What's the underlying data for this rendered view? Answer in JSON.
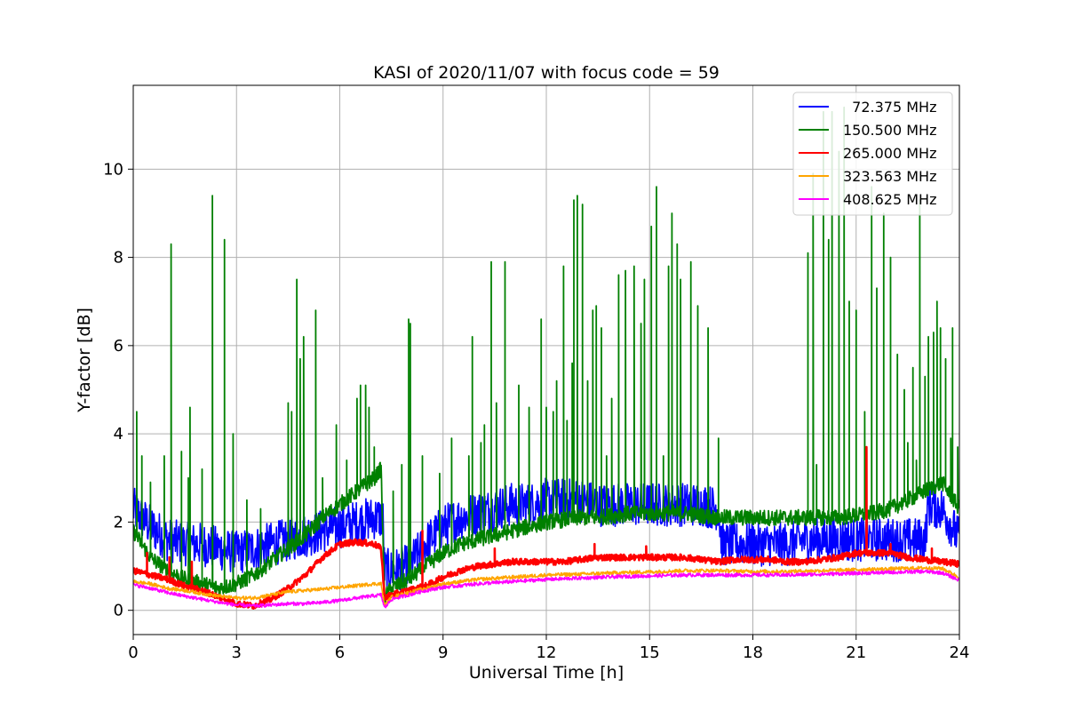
{
  "chart_data": {
    "type": "line",
    "title": "KASI of 2020/11/07 with focus code = 59",
    "xlabel": "Universal Time [h]",
    "ylabel": "Y-factor [dB]",
    "xlim": [
      0,
      24
    ],
    "ylim": [
      -0.55,
      11.9
    ],
    "xticks": [
      0,
      3,
      6,
      9,
      12,
      15,
      18,
      21,
      24
    ],
    "yticks": [
      0,
      2,
      4,
      6,
      8,
      10
    ],
    "grid": true,
    "legend_position": "top-right",
    "series": [
      {
        "name": "  72.375 MHz",
        "color": "#0000ff",
        "x": [
          0,
          0.5,
          1,
          1.5,
          2,
          2.5,
          3,
          3.5,
          4,
          4.5,
          5,
          5.5,
          6,
          6.5,
          7,
          7.25,
          7.3,
          7.5,
          8,
          8.5,
          9,
          9.5,
          10,
          10.5,
          11,
          11.5,
          12,
          12.5,
          13,
          13.5,
          14,
          14.5,
          15,
          15.5,
          16,
          16.5,
          17,
          17.1,
          17.5,
          18,
          18.5,
          19,
          19.5,
          20,
          20.5,
          21,
          21.5,
          22,
          22.5,
          23,
          23.1,
          23.5,
          24
        ],
        "y": [
          2.3,
          1.9,
          1.6,
          1.5,
          1.5,
          1.4,
          1.3,
          1.4,
          1.5,
          1.6,
          1.7,
          1.8,
          1.9,
          2.0,
          2.1,
          2.1,
          0.9,
          0.9,
          1.0,
          1.5,
          1.9,
          2.1,
          2.2,
          2.3,
          2.4,
          2.4,
          2.5,
          2.5,
          2.5,
          2.4,
          2.4,
          2.4,
          2.4,
          2.4,
          2.4,
          2.4,
          2.3,
          1.5,
          1.5,
          1.5,
          1.5,
          1.5,
          1.6,
          1.6,
          1.6,
          1.6,
          1.6,
          1.6,
          1.6,
          1.6,
          2.4,
          2.3,
          1.6
        ],
        "noise": 0.5
      },
      {
        "name": "150.500 MHz",
        "color": "#008000",
        "x": [
          0,
          0.5,
          1,
          1.5,
          2,
          2.5,
          3,
          3.5,
          4,
          4.5,
          5,
          5.5,
          6,
          6.5,
          7,
          7.2,
          7.3,
          7.5,
          8,
          8.5,
          9,
          9.5,
          10,
          10.5,
          11,
          11.5,
          12,
          12.5,
          13,
          13.5,
          14,
          14.5,
          15,
          15.5,
          16,
          16.5,
          17,
          17.5,
          18,
          18.5,
          19,
          19.5,
          20,
          20.5,
          21,
          21.5,
          22,
          22.5,
          23,
          23.5,
          24
        ],
        "y": [
          1.8,
          1.2,
          0.9,
          0.7,
          0.6,
          0.5,
          0.6,
          0.8,
          1.1,
          1.4,
          1.7,
          2.1,
          2.4,
          2.7,
          3.0,
          3.2,
          0.3,
          0.5,
          0.7,
          1.0,
          1.3,
          1.5,
          1.6,
          1.7,
          1.8,
          1.9,
          2.0,
          2.05,
          2.1,
          2.1,
          2.15,
          2.2,
          2.2,
          2.2,
          2.2,
          2.15,
          2.1,
          2.1,
          2.1,
          2.1,
          2.1,
          2.1,
          2.1,
          2.1,
          2.15,
          2.2,
          2.3,
          2.5,
          2.7,
          2.9,
          2.3
        ],
        "noise": 0.18,
        "spikes": [
          [
            0.1,
            4.5
          ],
          [
            0.25,
            3.5
          ],
          [
            0.5,
            2.9
          ],
          [
            0.9,
            3.5
          ],
          [
            1.1,
            8.3
          ],
          [
            1.4,
            3.6
          ],
          [
            1.6,
            3.0
          ],
          [
            1.65,
            4.6
          ],
          [
            2.0,
            3.2
          ],
          [
            2.3,
            9.4
          ],
          [
            2.65,
            8.4
          ],
          [
            2.9,
            4.0
          ],
          [
            3.3,
            2.5
          ],
          [
            3.7,
            2.3
          ],
          [
            4.5,
            4.7
          ],
          [
            4.6,
            4.5
          ],
          [
            4.75,
            7.5
          ],
          [
            4.85,
            5.7
          ],
          [
            4.95,
            6.2
          ],
          [
            5.3,
            6.8
          ],
          [
            5.5,
            3.0
          ],
          [
            5.9,
            4.2
          ],
          [
            6.2,
            3.4
          ],
          [
            6.5,
            4.8
          ],
          [
            6.6,
            5.1
          ],
          [
            6.75,
            5.1
          ],
          [
            6.85,
            4.6
          ],
          [
            7.0,
            3.7
          ],
          [
            7.55,
            2.7
          ],
          [
            7.8,
            3.3
          ],
          [
            8.0,
            6.6
          ],
          [
            8.05,
            6.5
          ],
          [
            8.4,
            3.5
          ],
          [
            8.9,
            3.1
          ],
          [
            9.25,
            3.9
          ],
          [
            9.75,
            3.5
          ],
          [
            9.85,
            6.2
          ],
          [
            10.1,
            3.8
          ],
          [
            10.2,
            4.2
          ],
          [
            10.4,
            7.9
          ],
          [
            10.55,
            4.7
          ],
          [
            10.8,
            7.9
          ],
          [
            11.2,
            5.1
          ],
          [
            11.5,
            4.6
          ],
          [
            11.85,
            6.6
          ],
          [
            12.0,
            4.6
          ],
          [
            12.2,
            4.5
          ],
          [
            12.3,
            5.2
          ],
          [
            12.5,
            7.8
          ],
          [
            12.6,
            4.3
          ],
          [
            12.75,
            5.6
          ],
          [
            12.8,
            9.3
          ],
          [
            12.9,
            9.4
          ],
          [
            13.05,
            9.2
          ],
          [
            13.2,
            5.2
          ],
          [
            13.35,
            6.8
          ],
          [
            13.45,
            6.9
          ],
          [
            13.6,
            6.4
          ],
          [
            13.75,
            3.5
          ],
          [
            13.9,
            4.8
          ],
          [
            14.1,
            7.6
          ],
          [
            14.3,
            7.7
          ],
          [
            14.55,
            7.8
          ],
          [
            14.75,
            6.5
          ],
          [
            14.85,
            7.5
          ],
          [
            15.05,
            8.7
          ],
          [
            15.2,
            9.6
          ],
          [
            15.4,
            3.5
          ],
          [
            15.55,
            7.8
          ],
          [
            15.65,
            9.0
          ],
          [
            15.8,
            8.3
          ],
          [
            15.9,
            7.5
          ],
          [
            16.2,
            7.9
          ],
          [
            16.4,
            6.9
          ],
          [
            16.7,
            6.4
          ],
          [
            17.0,
            3.9
          ],
          [
            19.6,
            8.1
          ],
          [
            19.75,
            9.9
          ],
          [
            19.85,
            3.3
          ],
          [
            20.05,
            11.3
          ],
          [
            20.2,
            8.4
          ],
          [
            20.3,
            11.3
          ],
          [
            20.5,
            10.4
          ],
          [
            20.65,
            11.4
          ],
          [
            20.8,
            7.0
          ],
          [
            21.0,
            6.8
          ],
          [
            21.25,
            4.5
          ],
          [
            21.45,
            9.6
          ],
          [
            21.6,
            7.3
          ],
          [
            21.8,
            9.0
          ],
          [
            22.0,
            8.0
          ],
          [
            22.2,
            5.8
          ],
          [
            22.4,
            5.0
          ],
          [
            22.5,
            3.8
          ],
          [
            22.65,
            5.5
          ],
          [
            22.75,
            3.4
          ],
          [
            22.85,
            9.3
          ],
          [
            23.0,
            5.3
          ],
          [
            23.1,
            6.2
          ],
          [
            23.25,
            6.3
          ],
          [
            23.35,
            7.0
          ],
          [
            23.45,
            6.4
          ],
          [
            23.6,
            5.7
          ],
          [
            23.75,
            3.9
          ],
          [
            23.8,
            6.4
          ],
          [
            23.95,
            3.7
          ]
        ]
      },
      {
        "name": "265.000 MHz",
        "color": "#ff0000",
        "x": [
          0,
          0.5,
          1,
          1.5,
          2,
          2.5,
          3,
          3.5,
          4,
          4.5,
          5,
          5.5,
          6,
          6.5,
          7,
          7.2,
          7.3,
          7.5,
          8,
          8.5,
          9,
          9.5,
          10,
          10.5,
          11,
          11.5,
          12,
          12.5,
          13,
          13.5,
          14,
          14.5,
          15,
          15.5,
          16,
          16.5,
          17,
          17.5,
          18,
          18.5,
          19,
          19.5,
          20,
          20.5,
          21,
          21.5,
          22,
          22.5,
          23,
          23.5,
          24
        ],
        "y": [
          0.9,
          0.8,
          0.7,
          0.55,
          0.45,
          0.3,
          0.15,
          0.1,
          0.25,
          0.5,
          0.8,
          1.2,
          1.5,
          1.55,
          1.5,
          1.4,
          0.3,
          0.35,
          0.45,
          0.55,
          0.75,
          0.9,
          1.0,
          1.05,
          1.1,
          1.1,
          1.1,
          1.1,
          1.15,
          1.2,
          1.2,
          1.2,
          1.2,
          1.2,
          1.2,
          1.15,
          1.1,
          1.15,
          1.15,
          1.15,
          1.1,
          1.1,
          1.15,
          1.2,
          1.3,
          1.3,
          1.3,
          1.2,
          1.15,
          1.1,
          1.05
        ],
        "noise": 0.07,
        "spikes": [
          [
            0.4,
            1.3
          ],
          [
            1.05,
            1.2
          ],
          [
            1.7,
            1.1
          ],
          [
            8.4,
            1.8
          ],
          [
            10.5,
            1.4
          ],
          [
            13.4,
            1.5
          ],
          [
            14.9,
            1.45
          ],
          [
            21.3,
            3.7
          ],
          [
            22.0,
            1.5
          ],
          [
            23.2,
            1.4
          ]
        ]
      },
      {
        "name": "323.563 MHz",
        "color": "#ffa500",
        "x": [
          0,
          0.5,
          1,
          1.5,
          2,
          2.5,
          3,
          3.5,
          4,
          4.5,
          5,
          5.5,
          6,
          6.5,
          7,
          7.2,
          7.3,
          7.5,
          8,
          8.5,
          9,
          9.5,
          10,
          11,
          12,
          13,
          14,
          15,
          16,
          17,
          18,
          19,
          20,
          21,
          22,
          23,
          23.5,
          24
        ],
        "y": [
          0.65,
          0.6,
          0.5,
          0.45,
          0.38,
          0.32,
          0.28,
          0.28,
          0.35,
          0.42,
          0.45,
          0.48,
          0.52,
          0.56,
          0.6,
          0.6,
          0.1,
          0.3,
          0.4,
          0.5,
          0.6,
          0.65,
          0.7,
          0.75,
          0.8,
          0.82,
          0.85,
          0.87,
          0.9,
          0.9,
          0.88,
          0.88,
          0.9,
          0.92,
          0.94,
          0.96,
          0.95,
          0.75
        ],
        "noise": 0.04
      },
      {
        "name": "408.625 MHz",
        "color": "#ff00ff",
        "x": [
          0,
          0.5,
          1,
          1.5,
          2,
          2.5,
          3,
          3.5,
          4,
          4.5,
          5,
          5.5,
          6,
          6.5,
          7,
          7.2,
          7.3,
          7.5,
          8,
          8.5,
          9,
          9.5,
          10,
          11,
          12,
          13,
          14,
          15,
          16,
          17,
          18,
          19,
          20,
          21,
          22,
          23,
          23.5,
          24
        ],
        "y": [
          0.58,
          0.5,
          0.4,
          0.32,
          0.25,
          0.18,
          0.12,
          0.1,
          0.12,
          0.15,
          0.15,
          0.18,
          0.22,
          0.28,
          0.33,
          0.35,
          0.05,
          0.25,
          0.35,
          0.45,
          0.52,
          0.56,
          0.6,
          0.65,
          0.7,
          0.73,
          0.76,
          0.78,
          0.8,
          0.8,
          0.8,
          0.8,
          0.82,
          0.84,
          0.86,
          0.88,
          0.85,
          0.68
        ],
        "noise": 0.04
      }
    ]
  }
}
